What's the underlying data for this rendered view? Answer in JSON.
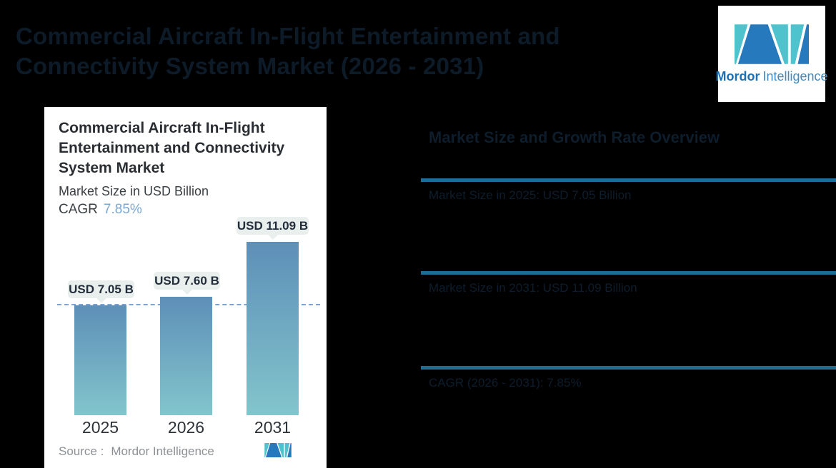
{
  "page": {
    "title_lines": [
      "Commercial Aircraft In-Flight Entertainment and",
      "Connectivity System Market (2026 - 2031)"
    ]
  },
  "header_logo": {
    "wordmark_bold": "Mordor",
    "wordmark_light": "Intelligence"
  },
  "card": {
    "title_lines": [
      "Commercial Aircraft In-Flight",
      "Entertainment and Connectivity",
      "System Market"
    ],
    "subtitle": "Market Size in USD Billion",
    "cagr_label": "CAGR",
    "cagr_value": "7.85%",
    "source_label": "Source :",
    "source_value": "Mordor Intelligence"
  },
  "chart_data": {
    "type": "bar",
    "title": "Commercial Aircraft In-Flight Entertainment and Connectivity System Market",
    "ylabel": "Market Size in USD Billion",
    "unit": "USD Billion",
    "cagr_percent": 7.85,
    "categories": [
      "2025",
      "2026",
      "2031"
    ],
    "values": [
      7.05,
      7.6,
      11.09
    ],
    "bar_labels": [
      "USD 7.05 B",
      "USD 7.60 B",
      "USD 11.09 B"
    ],
    "reference_line": {
      "value": 7.05,
      "style": "dashed",
      "color": "#7ba4d6"
    },
    "bar_color_top": "#5e8fb8",
    "bar_color_bottom": "#82c5cc",
    "grid": false,
    "legend": false
  },
  "right_panel": {
    "heading": "Market Size and Growth Rate Overview",
    "rows": [
      {
        "text": "Market Size in 2025: USD 7.05 Billion"
      },
      {
        "text": "Market Size in 2031: USD 11.09 Billion"
      },
      {
        "text": "CAGR (2026 - 2031): 7.85%"
      }
    ],
    "rule_color": "#1e6d95"
  },
  "colors": {
    "background": "#000000",
    "card_background": "#ffffff",
    "accent_blue": "#7aa7d2",
    "brand_teal": "#4fc3cd",
    "brand_blue": "#2779bd",
    "pill_background": "#e9efed",
    "hidden_text": "#0d1d2c"
  }
}
